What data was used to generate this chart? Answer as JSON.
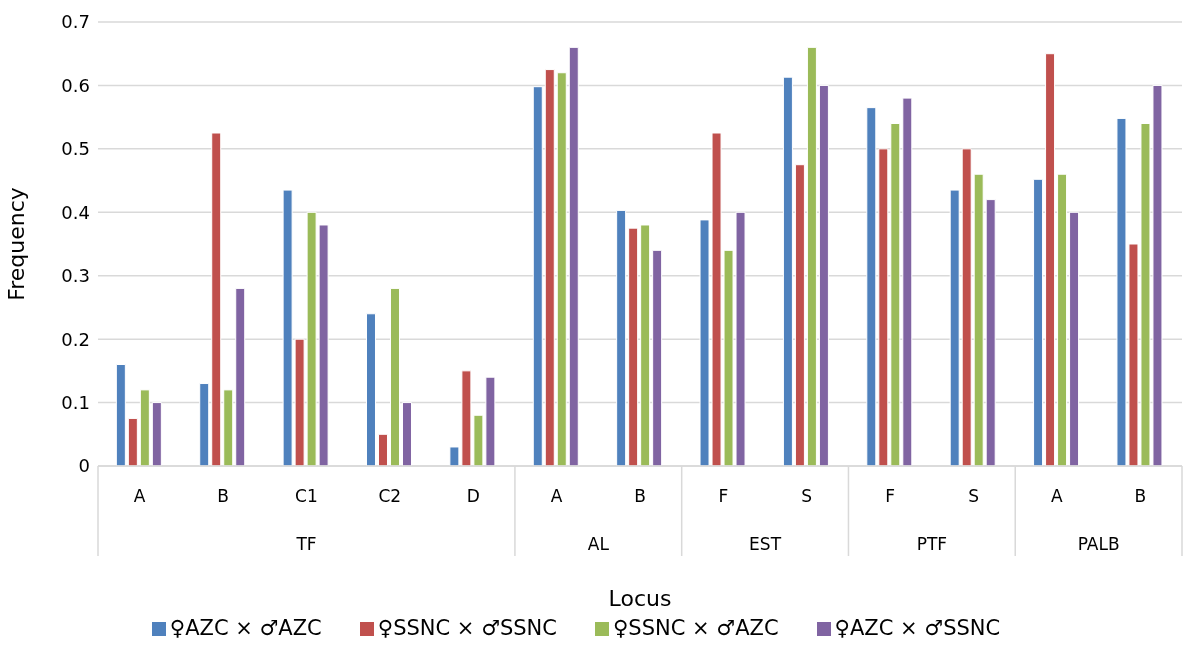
{
  "chart_data": {
    "type": "bar",
    "xlabel": "Locus",
    "ylabel": "Frequency",
    "categories": [
      "A",
      "B",
      "C1",
      "C2",
      "D",
      "A",
      "B",
      "F",
      "S",
      "F",
      "S",
      "A",
      "B"
    ],
    "annotations": [
      "TF",
      "AL",
      "EST",
      "PTF",
      "PALB"
    ],
    "series": [
      {
        "name": "♀AZC × ♂AZC",
        "color": "#4f81bd",
        "values": [
          0.16,
          0.13,
          0.435,
          0.24,
          0.03,
          0.598,
          0.403,
          0.388,
          0.613,
          0.565,
          0.435,
          0.452,
          0.548
        ]
      },
      {
        "name": "♀SSNC × ♂SSNC",
        "color": "#c0504d",
        "values": [
          0.075,
          0.525,
          0.2,
          0.05,
          0.15,
          0.625,
          0.375,
          0.525,
          0.475,
          0.5,
          0.5,
          0.65,
          0.35
        ]
      },
      {
        "name": "♀SSNC × ♂AZC",
        "color": "#9bbb59",
        "values": [
          0.12,
          0.12,
          0.4,
          0.28,
          0.08,
          0.62,
          0.38,
          0.34,
          0.66,
          0.54,
          0.46,
          0.46,
          0.54
        ]
      },
      {
        "name": "♀AZC × ♂SSNC",
        "color": "#8064a2",
        "values": [
          0.1,
          0.28,
          0.38,
          0.1,
          0.14,
          0.66,
          0.34,
          0.4,
          0.6,
          0.58,
          0.42,
          0.4,
          0.6
        ]
      }
    ],
    "ylim": [
      0,
      0.7
    ],
    "yticks": [
      0,
      0.1,
      0.2,
      0.3,
      0.4,
      0.5,
      0.6,
      0.7
    ],
    "grid": "y",
    "legend": "bottom"
  }
}
